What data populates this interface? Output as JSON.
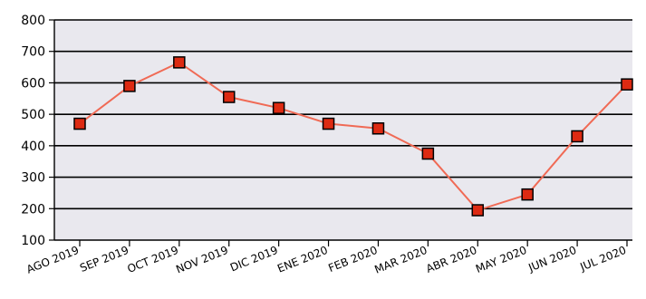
{
  "chart_data": {
    "type": "line",
    "categories": [
      "AGO 2019",
      "SEP 2019",
      "OCT 2019",
      "NOV 2019",
      "DIC 2019",
      "ENE 2020",
      "FEB 2020",
      "MAR 2020",
      "ABR 2020",
      "MAY 2020",
      "JUN 2020",
      "JUL 2020"
    ],
    "series": [
      {
        "values": [
          470,
          590,
          665,
          555,
          520,
          470,
          455,
          375,
          195,
          245,
          430,
          595
        ]
      }
    ],
    "ylim": [
      100,
      800
    ],
    "yticks": [
      100,
      200,
      300,
      400,
      500,
      600,
      700,
      800
    ],
    "ytick_labels": [
      "100",
      "200",
      "300",
      "400",
      "500",
      "600",
      "700",
      "800"
    ],
    "grid": true,
    "colors": {
      "line": "#f06a55",
      "marker": "#dd2a12",
      "marker_edge": "#000000",
      "plot_bg": "#e9e8ee",
      "grid": "#000000"
    }
  }
}
